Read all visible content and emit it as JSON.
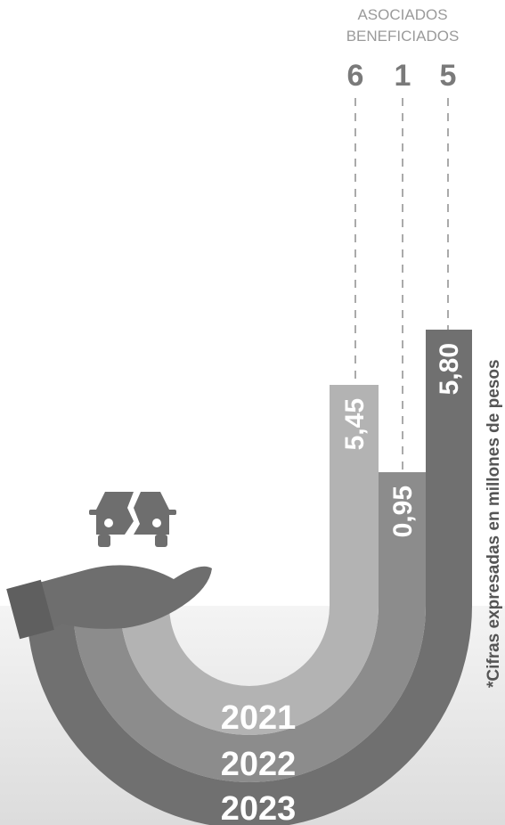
{
  "header": {
    "line1": "ASOCIADOS",
    "line2": "BENEFICIADOS"
  },
  "bars": [
    {
      "year": "2021",
      "amount": "5,45",
      "beneficiaries": "6"
    },
    {
      "year": "2022",
      "amount": "0,95",
      "beneficiaries": "1"
    },
    {
      "year": "2023",
      "amount": "5,80",
      "beneficiaries": "5"
    }
  ],
  "footnote": "*Cifras expresadas en millones de pesos"
}
